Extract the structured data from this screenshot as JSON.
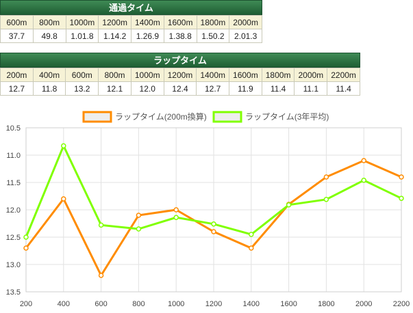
{
  "passing": {
    "title": "通過タイム",
    "headers": [
      "600m",
      "800m",
      "1000m",
      "1200m",
      "1400m",
      "1600m",
      "1800m",
      "2000m"
    ],
    "values": [
      "37.7",
      "49.8",
      "1.01.8",
      "1.14.2",
      "1.26.9",
      "1.38.8",
      "1.50.2",
      "2.01.3"
    ]
  },
  "lap": {
    "title": "ラップタイム",
    "headers": [
      "200m",
      "400m",
      "600m",
      "800m",
      "1000m",
      "1200m",
      "1400m",
      "1600m",
      "1800m",
      "2000m",
      "2200m"
    ],
    "values": [
      "12.7",
      "11.8",
      "13.2",
      "12.1",
      "12.0",
      "12.4",
      "12.7",
      "11.9",
      "11.4",
      "11.1",
      "11.4"
    ]
  },
  "chart_data": {
    "type": "line",
    "x": [
      200,
      400,
      600,
      800,
      1000,
      1200,
      1400,
      1600,
      1800,
      2000,
      2200
    ],
    "x_tick_labels": [
      "200",
      "400",
      "600",
      "800",
      "1000",
      "1200",
      "1400",
      "1600",
      "1800",
      "2000",
      "2200"
    ],
    "y_tick_labels": [
      "10.5",
      "11.0",
      "11.5",
      "12.0",
      "12.5",
      "13.0",
      "13.5"
    ],
    "ylim": [
      10.5,
      13.5
    ],
    "y_inverted": true,
    "grid": true,
    "legend_position": "top-center",
    "series": [
      {
        "name": "ラップタイム(200m換算)",
        "color": "#ff8c00",
        "values": [
          12.7,
          11.8,
          13.2,
          12.1,
          12.0,
          12.4,
          12.7,
          11.9,
          11.4,
          11.1,
          11.4
        ]
      },
      {
        "name": "ラップタイム(3年平均)",
        "color": "#80ff00",
        "values": [
          12.5,
          10.83,
          12.28,
          12.35,
          12.14,
          12.26,
          12.45,
          11.91,
          11.81,
          11.46,
          11.79
        ]
      }
    ]
  }
}
